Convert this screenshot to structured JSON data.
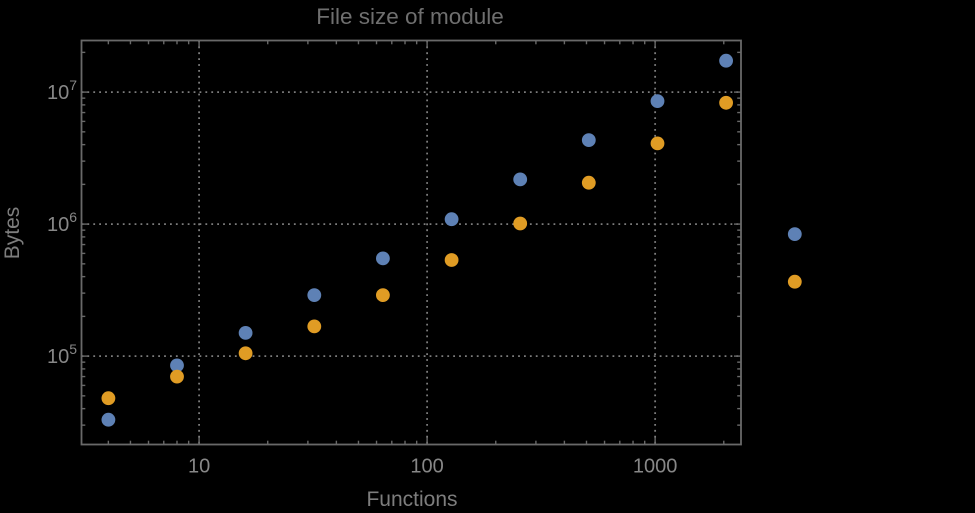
{
  "background_color": "#000000",
  "chart_data": {
    "type": "scatter",
    "title": "File size of module",
    "xlabel": "Functions",
    "ylabel": "Bytes",
    "xscale": "log",
    "yscale": "log",
    "xlim": [
      3.05,
      2380
    ],
    "ylim": [
      21400,
      24600000
    ],
    "grid": true,
    "grid_style": "dotted",
    "legend": "none",
    "x_ticks": [
      10,
      100,
      1000
    ],
    "x_tick_labels": [
      "10",
      "100",
      "1000"
    ],
    "y_ticks": [
      100000,
      1000000,
      10000000
    ],
    "y_tick_labels": [
      "10^5",
      "10^6",
      "10^7"
    ],
    "x": [
      4,
      8,
      16,
      32,
      64,
      128,
      256,
      512,
      1024,
      2048,
      4096
    ],
    "series": [
      {
        "name": "blue",
        "color": "#5e81b5",
        "values": [
          33000,
          85000,
          150000,
          290000,
          550000,
          1090000,
          2180000,
          4330000,
          8550000,
          17300000,
          840000
        ]
      },
      {
        "name": "orange",
        "color": "#e09c24",
        "values": [
          48000,
          70000,
          105000,
          168000,
          290000,
          535000,
          1010000,
          2060000,
          4090000,
          8300000,
          366000
        ]
      }
    ]
  }
}
